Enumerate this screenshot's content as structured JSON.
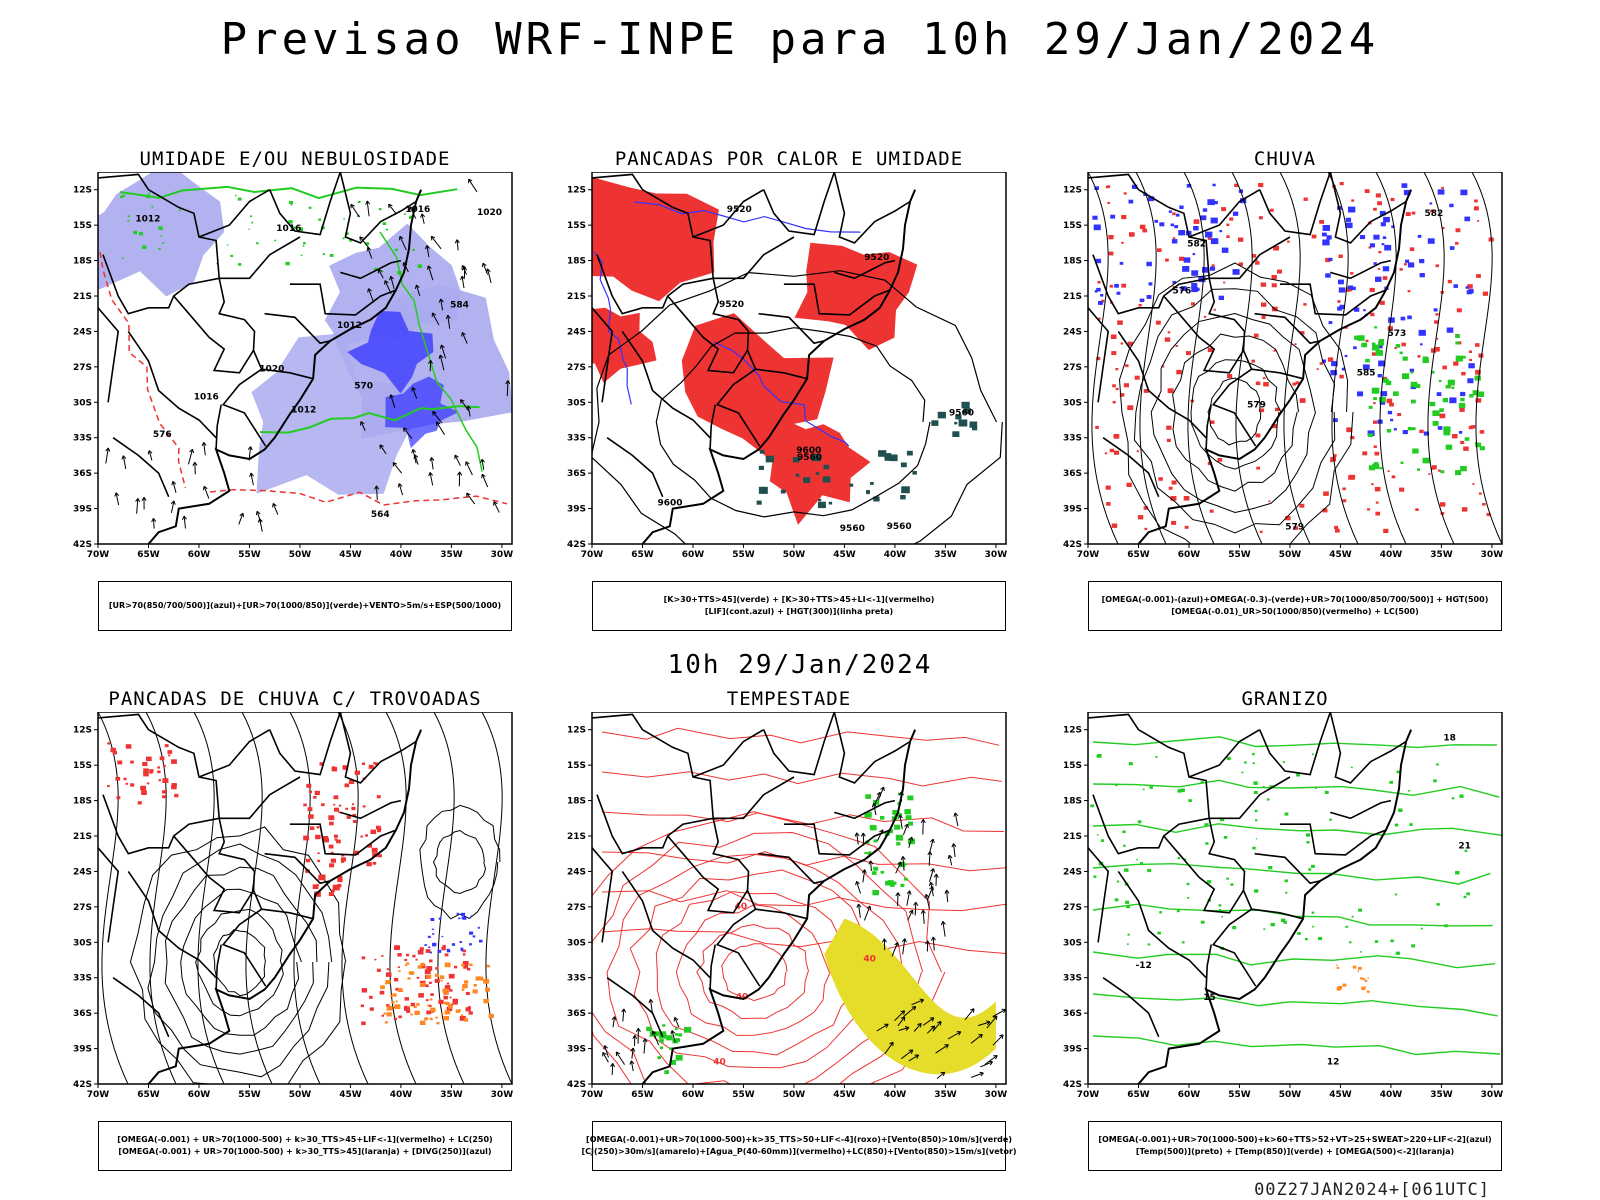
{
  "title": "Previsao WRF-INPE  para 10h 29/Jan/2024",
  "middle_title": "10h 29/Jan/2024",
  "footer": "00Z27JAN2024+[061UTC]",
  "axes": {
    "lat_ticks": [
      "12S",
      "15S",
      "18S",
      "21S",
      "24S",
      "27S",
      "30S",
      "33S",
      "36S",
      "39S",
      "42S"
    ],
    "lon_ticks": [
      "70W",
      "65W",
      "60W",
      "55W",
      "50W",
      "45W",
      "40W",
      "35W",
      "30W"
    ]
  },
  "panels": [
    {
      "title": "UMIDADE E/OU NEBULOSIDADE",
      "legend": [
        "[UR>70(850/700/500)](azul)+[UR>70(1000/850)](verde)+VENTO>5m/s+ESP(500/1000)"
      ],
      "labels": [
        "1016",
        "1016",
        "1012",
        "1012",
        "1012",
        "1016",
        "1020",
        "576",
        "570",
        "564",
        "584",
        "1020"
      ]
    },
    {
      "title": "PANCADAS POR CALOR E UMIDADE",
      "legend": [
        "[K>30+TTS>45](verde) + [K>30+TTS>45+LI<-1](vermelho)",
        "[LIF](cont.azul) + [HGT(300)](linha preta)"
      ],
      "labels": [
        "9560",
        "9560",
        "9560",
        "9600",
        "9600",
        "9520",
        "9520",
        "9520",
        "9560"
      ]
    },
    {
      "title": "CHUVA",
      "legend": [
        "[OMEGA(-0.001)-(azul)+OMEGA(-0.3)-(verde)+UR>70(1000/850/700/500)] + HGT(500)",
        "[OMEGA(-0.01)_UR>50(1000/850)(vermelho) + LC(500)"
      ],
      "labels": [
        "585",
        "582",
        "579",
        "576",
        "573",
        "579",
        "582"
      ]
    },
    {
      "title": "PANCADAS DE CHUVA C/ TROVOADAS",
      "legend": [
        "[OMEGA(-0.001) + UR>70(1000-500) + k>30_TTS>45+LIF<-1](vermelho) + LC(250)",
        "[OMEGA(-0.001) + UR>70(1000-500) + k>30_TTS>45](laranja) + [DIVG(250)](azul)"
      ],
      "labels": []
    },
    {
      "title": "TEMPESTADE",
      "legend": [
        "[OMEGA(-0.001)+UR>70(1000-500)+k>35_TTS>50+LIF<-4](roxo)+[Vento(850)>10m/s](verde)",
        "[CJ(250)>30m/s](amarelo)+[Agua_P(40-60mm)](vermelho)+LC(850)+[Vento(850)>15m/s](vetor)"
      ],
      "labels": [
        "40",
        "40",
        "40",
        "40"
      ]
    },
    {
      "title": "GRANIZO",
      "legend": [
        "[OMEGA(-0.001)+UR>70(1000-500)+k>60+TTS>52+VT>25+SWEAT>220+LIF<-2](azul)",
        "[Temp(500)](preto) + [Temp(850)](verde) + [OMEGA(500)<-2](laranja)"
      ],
      "labels": [
        "-12",
        "12",
        "15",
        "18",
        "21"
      ]
    }
  ],
  "colors": {
    "blue_humid": "#3333ff",
    "lavender": "#aaaaee",
    "green": "#22cc22",
    "red": "#ee3333",
    "dark_teal": "#1f4f4f",
    "orange": "#ff8822",
    "yellow": "#e6dc2a",
    "purple": "#9933cc"
  }
}
